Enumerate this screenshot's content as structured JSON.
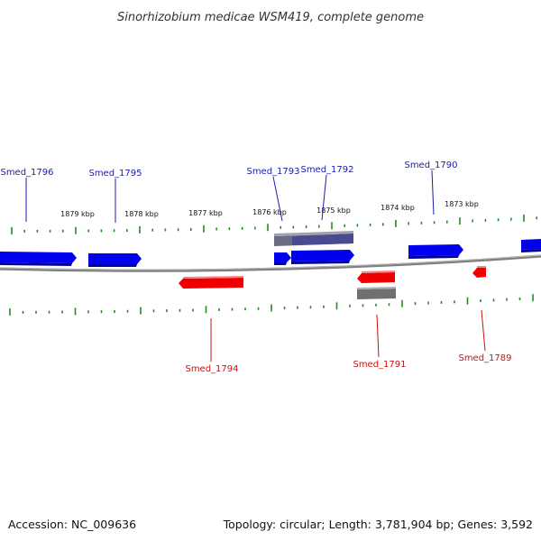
{
  "title": "Sinorhizobium medicae WSM419, complete genome",
  "footer": {
    "accession": "Accession: NC_009636",
    "topology": "Topology: circular; Length: 3,781,904 bp; Genes: 3,592"
  },
  "colors": {
    "forward": "#0000ee",
    "reverse": "#ee0000",
    "other": "#707070",
    "tick": "#228b22",
    "backbone": "#808080",
    "forward_label": "#1a1ab0",
    "reverse_label": "#cc1111"
  },
  "scale_labels": [
    "1879 kbp",
    "1878 kbp",
    "1877 kbp",
    "1876 kbp",
    "1875 kbp",
    "1874 kbp",
    "1873 kbp"
  ],
  "gene_labels": {
    "smed_1796": "Smed_1796",
    "smed_1795": "Smed_1795",
    "smed_1793": "Smed_1793",
    "smed_1792": "Smed_1792",
    "smed_1790": "Smed_1790",
    "smed_1794": "Smed_1794",
    "smed_1791": "Smed_1791",
    "smed_1789": "Smed_1789"
  }
}
